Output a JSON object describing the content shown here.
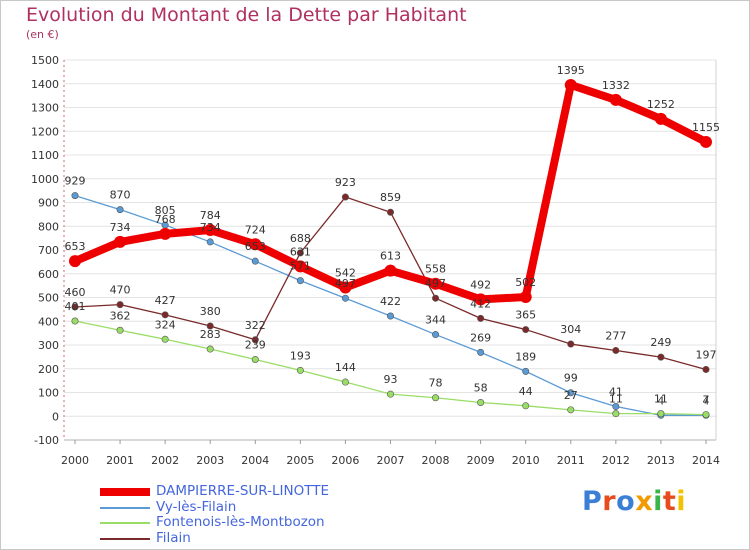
{
  "header": {
    "title": "Evolution du Montant de la Dette par Habitant",
    "unit": "(en €)"
  },
  "logo": {
    "text": "Proxiti",
    "colors": [
      "#3a7fd5",
      "#e84c1e",
      "#3a7fd5",
      "#f29a00",
      "#3ab54a",
      "#e84c1e",
      "#f2c200"
    ]
  },
  "chart_data": {
    "type": "line",
    "title": "Evolution du Montant de la Dette par Habitant",
    "unit_label": "(en €)",
    "x": [
      2000,
      2001,
      2002,
      2003,
      2004,
      2005,
      2006,
      2007,
      2008,
      2009,
      2010,
      2011,
      2012,
      2013,
      2014
    ],
    "ylim": [
      -100,
      1500
    ],
    "yticks": [
      -100,
      0,
      100,
      200,
      300,
      400,
      500,
      600,
      700,
      800,
      900,
      1000,
      1100,
      1200,
      1300,
      1400,
      1500
    ],
    "grid": true,
    "legend_position": "bottom-left",
    "series": [
      {
        "name": "DAMPIERRE-SUR-LINOTTE",
        "color": "#ee0000",
        "values": [
          653,
          734,
          768,
          784,
          724,
          631,
          542,
          613,
          558,
          492,
          502,
          1395,
          1332,
          1252,
          1155
        ]
      },
      {
        "name": "Vy-lès-Filain",
        "color": "#5b9bd5",
        "values": [
          929,
          870,
          805,
          734,
          653,
          571,
          497,
          422,
          344,
          269,
          189,
          99,
          41,
          4,
          4
        ]
      },
      {
        "name": "Fontenois-lès-Montbozon",
        "color": "#99dd66",
        "values": [
          401,
          362,
          324,
          283,
          239,
          193,
          144,
          93,
          78,
          58,
          44,
          27,
          11,
          11,
          7
        ]
      },
      {
        "name": "Filain",
        "color": "#7a2a2a",
        "values": [
          460,
          470,
          427,
          380,
          322,
          688,
          923,
          859,
          497,
          412,
          365,
          304,
          277,
          249,
          197
        ]
      }
    ]
  }
}
